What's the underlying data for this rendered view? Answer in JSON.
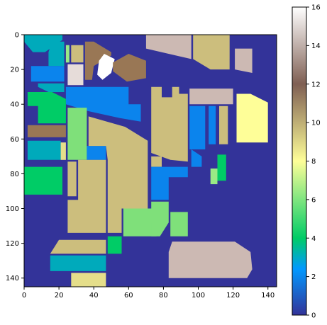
{
  "chart_data": {
    "type": "heatmap",
    "title": "",
    "xlabel": "",
    "ylabel": "",
    "xlim": [
      0,
      145
    ],
    "ylim": [
      145,
      0
    ],
    "x_ticks": [
      0,
      20,
      40,
      60,
      80,
      100,
      120,
      140
    ],
    "y_ticks": [
      0,
      20,
      40,
      60,
      80,
      100,
      120,
      140
    ],
    "colorbar": {
      "colormap": "terrain",
      "vmin": 0,
      "vmax": 16,
      "ticks": [
        0,
        2,
        4,
        6,
        8,
        10,
        12,
        14,
        16
      ],
      "colors": [
        "#333399",
        "#0b84ed",
        "#00cc66",
        "#99ea85",
        "#fefe98",
        "#ccbe7d",
        "#997755",
        "#b39a93",
        "#ffffff"
      ]
    },
    "background_class": 0,
    "regions": [
      {
        "class": 3,
        "polygon": [
          [
            0,
            0
          ],
          [
            22,
            0
          ],
          [
            22,
            3
          ],
          [
            12,
            10
          ],
          [
            5,
            10
          ],
          [
            0,
            4
          ]
        ]
      },
      {
        "class": 3,
        "polygon": [
          [
            16,
            4
          ],
          [
            23,
            4
          ],
          [
            23,
            18
          ],
          [
            14,
            18
          ],
          [
            14,
            10
          ]
        ]
      },
      {
        "class": 6,
        "polygon": [
          [
            24,
            6
          ],
          [
            26,
            6
          ],
          [
            26,
            16
          ],
          [
            24,
            16
          ]
        ]
      },
      {
        "class": 10,
        "polygon": [
          [
            27,
            6
          ],
          [
            34,
            6
          ],
          [
            34,
            16
          ],
          [
            27,
            16
          ]
        ]
      },
      {
        "class": 2,
        "polygon": [
          [
            4,
            18
          ],
          [
            23,
            18
          ],
          [
            23,
            27
          ],
          [
            4,
            27
          ]
        ]
      },
      {
        "class": 15,
        "polygon": [
          [
            25,
            17
          ],
          [
            34,
            17
          ],
          [
            34,
            29
          ],
          [
            25,
            29
          ]
        ]
      },
      {
        "class": 11,
        "polygon": [
          [
            35,
            4
          ],
          [
            40,
            4
          ],
          [
            50,
            10
          ],
          [
            50,
            12
          ],
          [
            40,
            18
          ],
          [
            39,
            26
          ],
          [
            35,
            26
          ]
        ]
      },
      {
        "class": 16,
        "polygon": [
          [
            43,
            15
          ],
          [
            46,
            11
          ],
          [
            52,
            14
          ],
          [
            50,
            22
          ],
          [
            45,
            26
          ],
          [
            42,
            23
          ]
        ]
      },
      {
        "class": 11,
        "polygon": [
          [
            51,
            16
          ],
          [
            60,
            11
          ],
          [
            70,
            15
          ],
          [
            70,
            25
          ],
          [
            59,
            27
          ],
          [
            51,
            21
          ]
        ]
      },
      {
        "class": 14,
        "polygon": [
          [
            70,
            0
          ],
          [
            96,
            0
          ],
          [
            96,
            14
          ],
          [
            70,
            8
          ]
        ]
      },
      {
        "class": 10,
        "polygon": [
          [
            97,
            0
          ],
          [
            118,
            0
          ],
          [
            118,
            20
          ],
          [
            107,
            20
          ],
          [
            97,
            14
          ]
        ]
      },
      {
        "class": 14,
        "polygon": [
          [
            121,
            8
          ],
          [
            131,
            8
          ],
          [
            131,
            22
          ],
          [
            121,
            20
          ]
        ]
      },
      {
        "class": 3,
        "polygon": [
          [
            8,
            28
          ],
          [
            23,
            28
          ],
          [
            23,
            33
          ],
          [
            14,
            33
          ],
          [
            8,
            30
          ]
        ]
      },
      {
        "class": 2,
        "polygon": [
          [
            24,
            30
          ],
          [
            60,
            30
          ],
          [
            60,
            40
          ],
          [
            67,
            40
          ],
          [
            67,
            50
          ],
          [
            55,
            48
          ],
          [
            37,
            44
          ],
          [
            24,
            40
          ]
        ]
      },
      {
        "class": 4,
        "polygon": [
          [
            2,
            33
          ],
          [
            16,
            33
          ],
          [
            24,
            37
          ],
          [
            24,
            51
          ],
          [
            8,
            51
          ],
          [
            8,
            41
          ],
          [
            2,
            41
          ]
        ]
      },
      {
        "class": 12,
        "polygon": [
          [
            2,
            52
          ],
          [
            24,
            52
          ],
          [
            24,
            59
          ],
          [
            2,
            59
          ]
        ]
      },
      {
        "class": 3,
        "polygon": [
          [
            2,
            61
          ],
          [
            21,
            61
          ],
          [
            21,
            72
          ],
          [
            2,
            72
          ]
        ]
      },
      {
        "class": 9,
        "polygon": [
          [
            21,
            62
          ],
          [
            24,
            62
          ],
          [
            24,
            72
          ],
          [
            21,
            72
          ]
        ]
      },
      {
        "class": 5,
        "polygon": [
          [
            25,
            42
          ],
          [
            36,
            42
          ],
          [
            36,
            72
          ],
          [
            25,
            72
          ]
        ]
      },
      {
        "class": 2,
        "polygon": [
          [
            36,
            64
          ],
          [
            47,
            64
          ],
          [
            47,
            72
          ],
          [
            36,
            72
          ]
        ]
      },
      {
        "class": 10,
        "polygon": [
          [
            37,
            47
          ],
          [
            58,
            53
          ],
          [
            71,
            61
          ],
          [
            71,
            100
          ],
          [
            48,
            100
          ],
          [
            48,
            72
          ],
          [
            47,
            64
          ],
          [
            37,
            64
          ]
        ]
      },
      {
        "class": 10,
        "polygon": [
          [
            73,
            30
          ],
          [
            79,
            30
          ],
          [
            79,
            36
          ],
          [
            85,
            36
          ],
          [
            85,
            30
          ],
          [
            89,
            30
          ],
          [
            89,
            34
          ],
          [
            94,
            34
          ],
          [
            94,
            73
          ],
          [
            84,
            72
          ],
          [
            73,
            68
          ]
        ]
      },
      {
        "class": 14,
        "polygon": [
          [
            95,
            31
          ],
          [
            120,
            31
          ],
          [
            120,
            40
          ],
          [
            95,
            40
          ]
        ]
      },
      {
        "class": 2,
        "polygon": [
          [
            95,
            41
          ],
          [
            104,
            41
          ],
          [
            104,
            66
          ],
          [
            95,
            66
          ]
        ]
      },
      {
        "class": 2,
        "polygon": [
          [
            106,
            41
          ],
          [
            110,
            41
          ],
          [
            110,
            63
          ],
          [
            106,
            63
          ]
        ]
      },
      {
        "class": 10,
        "polygon": [
          [
            112,
            41
          ],
          [
            117,
            41
          ],
          [
            117,
            63
          ],
          [
            112,
            63
          ]
        ]
      },
      {
        "class": 8,
        "polygon": [
          [
            122,
            34
          ],
          [
            130,
            34
          ],
          [
            140,
            39
          ],
          [
            140,
            62
          ],
          [
            122,
            62
          ]
        ]
      },
      {
        "class": 2,
        "polygon": [
          [
            96,
            66
          ],
          [
            102,
            70
          ],
          [
            102,
            76
          ],
          [
            96,
            76
          ]
        ]
      },
      {
        "class": 4,
        "polygon": [
          [
            111,
            69
          ],
          [
            116,
            69
          ],
          [
            116,
            84
          ],
          [
            111,
            84
          ]
        ]
      },
      {
        "class": 6,
        "polygon": [
          [
            107,
            77
          ],
          [
            111,
            77
          ],
          [
            111,
            86
          ],
          [
            107,
            86
          ]
        ]
      },
      {
        "class": 10,
        "polygon": [
          [
            73,
            70
          ],
          [
            79,
            70
          ],
          [
            79,
            76
          ],
          [
            73,
            76
          ]
        ]
      },
      {
        "class": 2,
        "polygon": [
          [
            73,
            76
          ],
          [
            94,
            76
          ],
          [
            94,
            82
          ],
          [
            83,
            82
          ],
          [
            83,
            95
          ],
          [
            73,
            95
          ]
        ]
      },
      {
        "class": 10,
        "polygon": [
          [
            25,
            73
          ],
          [
            30,
            73
          ],
          [
            30,
            93
          ],
          [
            25,
            93
          ]
        ]
      },
      {
        "class": 10,
        "polygon": [
          [
            31,
            72
          ],
          [
            47,
            72
          ],
          [
            47,
            114
          ],
          [
            25,
            114
          ],
          [
            25,
            95
          ],
          [
            31,
            95
          ]
        ]
      },
      {
        "class": 10,
        "polygon": [
          [
            48,
            100
          ],
          [
            56,
            100
          ],
          [
            56,
            114
          ],
          [
            48,
            114
          ]
        ]
      },
      {
        "class": 4,
        "polygon": [
          [
            0,
            76
          ],
          [
            22,
            76
          ],
          [
            22,
            92
          ],
          [
            0,
            92
          ]
        ]
      },
      {
        "class": 5,
        "polygon": [
          [
            57,
            100
          ],
          [
            76,
            100
          ],
          [
            76,
            116
          ],
          [
            57,
            116
          ]
        ]
      },
      {
        "class": 5,
        "polygon": [
          [
            73,
            96
          ],
          [
            83,
            96
          ],
          [
            83,
            108
          ],
          [
            78,
            116
          ],
          [
            73,
            116
          ]
        ]
      },
      {
        "class": 5,
        "polygon": [
          [
            84,
            102
          ],
          [
            94,
            102
          ],
          [
            94,
            116
          ],
          [
            84,
            116
          ]
        ]
      },
      {
        "class": 4,
        "polygon": [
          [
            48,
            116
          ],
          [
            56,
            116
          ],
          [
            56,
            126
          ],
          [
            48,
            126
          ]
        ]
      },
      {
        "class": 10,
        "polygon": [
          [
            20,
            118
          ],
          [
            47,
            118
          ],
          [
            47,
            126
          ],
          [
            15,
            126
          ]
        ]
      },
      {
        "class": 3,
        "polygon": [
          [
            15,
            127
          ],
          [
            47,
            127
          ],
          [
            47,
            136
          ],
          [
            15,
            136
          ]
        ]
      },
      {
        "class": 9,
        "polygon": [
          [
            27,
            137
          ],
          [
            47,
            137
          ],
          [
            47,
            145
          ],
          [
            27,
            145
          ]
        ]
      },
      {
        "class": 14,
        "polygon": [
          [
            85,
            119
          ],
          [
            121,
            119
          ],
          [
            130,
            125
          ],
          [
            131,
            135
          ],
          [
            128,
            140
          ],
          [
            83,
            140
          ],
          [
            83,
            125
          ]
        ]
      }
    ]
  }
}
